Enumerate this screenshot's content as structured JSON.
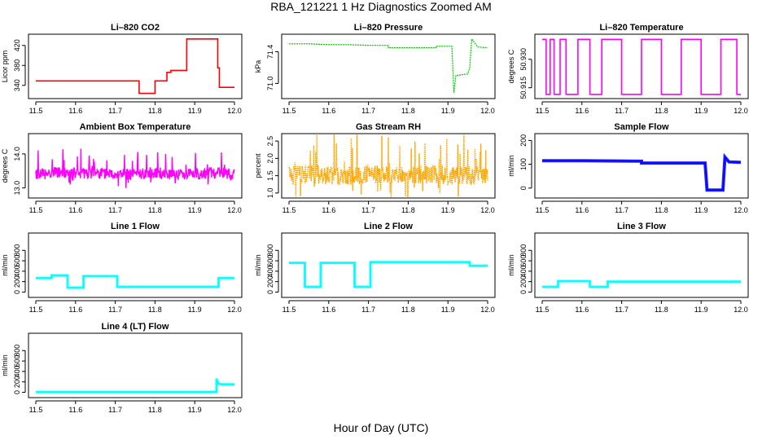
{
  "figure": {
    "title": "RBA_121221  1 Hz Diagnostics Zoomed AM",
    "xlabel": "Hour of Day (UTC)"
  },
  "chart_data": [
    {
      "type": "line",
      "title": "Li–820 CO2",
      "ylabel": "Licor ppm",
      "color": "#ff0000",
      "xlim": [
        11.5,
        12.0
      ],
      "ylim": [
        320,
        436
      ],
      "xticks": [
        "11.5",
        "11.6",
        "11.7",
        "11.8",
        "11.9",
        "12.0"
      ],
      "yticks": [
        {
          "v": 340,
          "label": "340"
        },
        {
          "v": 380,
          "label": "380"
        },
        {
          "v": 420,
          "label": "420"
        }
      ],
      "series": [
        {
          "name": "CO2",
          "x": [
            11.5,
            11.76,
            11.76,
            11.8,
            11.8,
            11.83,
            11.83,
            11.84,
            11.84,
            11.88,
            11.88,
            11.958,
            11.958,
            11.962,
            11.962,
            12.0
          ],
          "y": [
            349,
            349,
            324,
            324,
            349,
            349,
            366,
            366,
            370,
            370,
            433,
            433,
            375,
            375,
            336,
            336
          ]
        }
      ]
    },
    {
      "type": "line",
      "title": "Li–820 Pressure",
      "ylabel": "kPa",
      "color": "#00cc00",
      "xlim": [
        11.5,
        12.0
      ],
      "ylim": [
        70.85,
        71.58
      ],
      "xticks": [
        "11.5",
        "11.6",
        "11.7",
        "11.8",
        "11.9",
        "12.0"
      ],
      "yticks": [
        {
          "v": 71.0,
          "label": "71.0"
        },
        {
          "v": 71.4,
          "label": "71.4"
        }
      ],
      "series": [
        {
          "name": "Pressure",
          "x": [
            11.5,
            11.55,
            11.6,
            11.65,
            11.7,
            11.75,
            11.75,
            11.82,
            11.87,
            11.87,
            11.91,
            11.915,
            11.92,
            11.95,
            11.955,
            11.96,
            11.975,
            12.0
          ],
          "y": [
            71.5,
            71.5,
            71.49,
            71.49,
            71.48,
            71.48,
            71.45,
            71.45,
            71.45,
            71.47,
            71.47,
            70.88,
            71.1,
            71.12,
            71.2,
            71.56,
            71.46,
            71.45
          ]
        }
      ]
    },
    {
      "type": "line",
      "title": "Li–820 Temperature",
      "ylabel": "degrees C",
      "color": "#ff00ff",
      "xlim": [
        11.5,
        12.0
      ],
      "ylim": [
        50.911,
        50.9415
      ],
      "xticks": [
        "11.5",
        "11.6",
        "11.7",
        "11.8",
        "11.9",
        "12.0"
      ],
      "yticks": [
        {
          "v": 50.915,
          "label": "50.915"
        },
        {
          "v": 50.93,
          "label": "50.930"
        }
      ],
      "series": [
        {
          "name": "Temperature",
          "x": [
            11.5,
            11.51,
            11.51,
            11.52,
            11.52,
            11.53,
            11.53,
            11.545,
            11.545,
            11.56,
            11.56,
            11.59,
            11.59,
            11.62,
            11.62,
            11.65,
            11.65,
            11.7,
            11.7,
            11.75,
            11.75,
            11.8,
            11.8,
            11.85,
            11.85,
            11.9,
            11.9,
            11.95,
            11.95,
            11.99,
            11.99,
            12.0
          ],
          "y": [
            50.9405,
            50.9405,
            50.9115,
            50.9115,
            50.9405,
            50.9405,
            50.9115,
            50.9115,
            50.9405,
            50.9405,
            50.9115,
            50.9115,
            50.9405,
            50.9405,
            50.9115,
            50.9115,
            50.9405,
            50.9405,
            50.9115,
            50.9115,
            50.9405,
            50.9405,
            50.9115,
            50.9115,
            50.9405,
            50.9405,
            50.9115,
            50.9115,
            50.9405,
            50.9405,
            50.9115,
            50.9115
          ]
        }
      ]
    },
    {
      "type": "line",
      "title": "Ambient Box Temperature",
      "ylabel": "degrees C",
      "color": "#ff00ff",
      "xlim": [
        11.5,
        12.0
      ],
      "ylim": [
        12.8,
        14.5
      ],
      "xticks": [
        "11.5",
        "11.6",
        "11.7",
        "11.8",
        "11.9",
        "12.0"
      ],
      "yticks": [
        {
          "v": 13.0,
          "label": "13.0"
        },
        {
          "v": 14.0,
          "label": "14.0"
        }
      ],
      "series": [
        {
          "name": "Ambient",
          "x": [
            11.5,
            11.55,
            11.6,
            11.65,
            11.7,
            11.75,
            11.8,
            11.85,
            11.9,
            11.95,
            12.0
          ],
          "y": [
            13.4,
            13.45,
            13.4,
            13.45,
            13.4,
            13.4,
            13.45,
            13.4,
            13.4,
            13.45,
            13.4
          ]
        }
      ]
    },
    {
      "type": "line",
      "title": "Gas Stream RH",
      "ylabel": "percent",
      "color": "#ffa500",
      "xlim": [
        11.5,
        12.0
      ],
      "ylim": [
        0.95,
        2.62
      ],
      "xticks": [
        "11.5",
        "11.6",
        "11.7",
        "11.8",
        "11.9",
        "12.0"
      ],
      "yticks": [
        {
          "v": 1.0,
          "label": "1.0"
        },
        {
          "v": 1.5,
          "label": "1.5"
        },
        {
          "v": 2.0,
          "label": "2.0"
        },
        {
          "v": 2.5,
          "label": "2.5"
        }
      ],
      "series": [
        {
          "name": "RH",
          "x": [
            11.5,
            11.55,
            11.6,
            11.65,
            11.7,
            11.75,
            11.8,
            11.85,
            11.9,
            11.95,
            12.0
          ],
          "y": [
            1.5,
            1.55,
            1.5,
            1.5,
            1.55,
            1.5,
            1.5,
            1.55,
            1.5,
            1.5,
            1.5
          ]
        }
      ]
    },
    {
      "type": "line",
      "title": "Sample Flow",
      "ylabel": "ml/min",
      "color": "#0000ff",
      "xlim": [
        11.5,
        12.0
      ],
      "ylim": [
        -28,
        215
      ],
      "xticks": [
        "11.5",
        "11.6",
        "11.7",
        "11.8",
        "11.9",
        "12.0"
      ],
      "yticks": [
        {
          "v": 0,
          "label": "0"
        },
        {
          "v": 100,
          "label": "100"
        },
        {
          "v": 200,
          "label": "200"
        }
      ],
      "series": [
        {
          "name": "Sample",
          "x": [
            11.5,
            11.6,
            11.75,
            11.75,
            11.91,
            11.915,
            11.955,
            11.96,
            11.97,
            12.0
          ],
          "y": [
            115,
            115,
            113,
            105,
            105,
            -8,
            -8,
            130,
            110,
            108
          ]
        }
      ]
    },
    {
      "type": "line",
      "title": "Line 1 Flow",
      "ylabel": "ml/min",
      "color": "#00ffff",
      "xlim": [
        11.5,
        12.0
      ],
      "ylim": [
        -40,
        1070
      ],
      "xticks": [
        "11.5",
        "11.6",
        "11.7",
        "11.8",
        "11.9",
        "12.0"
      ],
      "yticks": [
        {
          "v": 0,
          "label": "0"
        },
        {
          "v": 200,
          "label": "200"
        },
        {
          "v": 400,
          "label": "400"
        },
        {
          "v": 600,
          "label": "600"
        },
        {
          "v": 800,
          "label": "800"
        }
      ],
      "series": [
        {
          "name": "Line 1",
          "x": [
            11.5,
            11.54,
            11.54,
            11.58,
            11.58,
            11.62,
            11.62,
            11.705,
            11.705,
            11.96,
            11.96,
            12.0
          ],
          "y": [
            270,
            270,
            320,
            320,
            85,
            85,
            305,
            305,
            100,
            100,
            270,
            270
          ]
        }
      ]
    },
    {
      "type": "line",
      "title": "Line 2 Flow",
      "ylabel": "ml/min",
      "color": "#00ffff",
      "xlim": [
        11.5,
        12.0
      ],
      "ylim": [
        -40,
        1070
      ],
      "xticks": [
        "11.5",
        "11.6",
        "11.7",
        "11.8",
        "11.9",
        "12.0"
      ],
      "yticks": [
        {
          "v": 0,
          "label": "0"
        },
        {
          "v": 200,
          "label": "200"
        },
        {
          "v": 400,
          "label": "400"
        },
        {
          "v": 600,
          "label": "600"
        },
        {
          "v": 800,
          "label": "800"
        }
      ],
      "series": [
        {
          "name": "Line 2",
          "x": [
            11.5,
            11.54,
            11.54,
            11.58,
            11.58,
            11.665,
            11.665,
            11.705,
            11.705,
            11.955,
            11.955,
            12.0
          ],
          "y": [
            560,
            560,
            100,
            100,
            560,
            560,
            100,
            100,
            575,
            575,
            505,
            505
          ]
        }
      ]
    },
    {
      "type": "line",
      "title": "Line 3 Flow",
      "ylabel": "ml/min",
      "color": "#00ffff",
      "xlim": [
        11.5,
        12.0
      ],
      "ylim": [
        -40,
        1070
      ],
      "xticks": [
        "11.5",
        "11.6",
        "11.7",
        "11.8",
        "11.9",
        "12.0"
      ],
      "yticks": [
        {
          "v": 0,
          "label": "0"
        },
        {
          "v": 200,
          "label": "200"
        },
        {
          "v": 400,
          "label": "400"
        },
        {
          "v": 600,
          "label": "600"
        },
        {
          "v": 800,
          "label": "800"
        }
      ],
      "series": [
        {
          "name": "Line 3",
          "x": [
            11.5,
            11.54,
            11.54,
            11.62,
            11.62,
            11.665,
            11.665,
            12.0
          ],
          "y": [
            100,
            100,
            210,
            210,
            100,
            100,
            200,
            200
          ]
        }
      ]
    },
    {
      "type": "line",
      "title": "Line 4 (LT) Flow",
      "ylabel": "ml/min",
      "color": "#00ffff",
      "xlim": [
        11.5,
        12.0
      ],
      "ylim": [
        -40,
        1070
      ],
      "xticks": [
        "11.5",
        "11.6",
        "11.7",
        "11.8",
        "11.9",
        "12.0"
      ],
      "yticks": [
        {
          "v": 0,
          "label": "0"
        },
        {
          "v": 200,
          "label": "200"
        },
        {
          "v": 400,
          "label": "400"
        },
        {
          "v": 600,
          "label": "600"
        },
        {
          "v": 800,
          "label": "800"
        }
      ],
      "series": [
        {
          "name": "Line 4",
          "x": [
            11.5,
            11.955,
            11.955,
            11.96,
            11.97,
            12.0
          ],
          "y": [
            5,
            5,
            260,
            165,
            150,
            150
          ]
        }
      ]
    }
  ]
}
